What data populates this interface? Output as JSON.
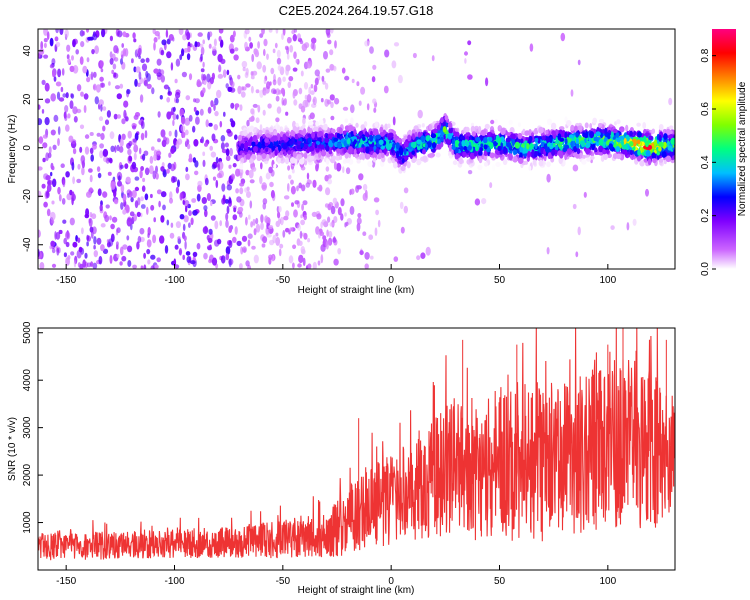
{
  "title": "C2E5.2024.264.19.57.G18",
  "chart_data": [
    {
      "type": "heatmap",
      "xlabel": "Height of straight line (km)",
      "ylabel": "Frequency (Hz)",
      "xlim": [
        -163,
        131
      ],
      "ylim": [
        -50,
        49
      ],
      "xticks": [
        -150,
        -100,
        -50,
        0,
        50,
        100
      ],
      "yticks": [
        -40,
        -20,
        0,
        20,
        40
      ],
      "colorbar": {
        "label": "Normalized spectral amplitude",
        "range": [
          0.0,
          0.9
        ],
        "ticks": [
          0.0,
          0.2,
          0.4,
          0.6,
          0.8
        ],
        "colors": [
          "#ffffff",
          "#cc66ff",
          "#7f00ff",
          "#0000ff",
          "#00bfff",
          "#00ff80",
          "#80ff00",
          "#ffff00",
          "#ff8000",
          "#ff0000",
          "#ff0080"
        ]
      },
      "noise_region_x_max": -25,
      "signal_track": {
        "x": [
          -70,
          -60,
          -50,
          -40,
          -30,
          -20,
          -10,
          0,
          5,
          10,
          20,
          25,
          30,
          40,
          50,
          60,
          70,
          80,
          90,
          100,
          110,
          115,
          120,
          125,
          131
        ],
        "freq": [
          0,
          1,
          1,
          2,
          2,
          3,
          2,
          2,
          -3,
          1,
          3,
          8,
          1,
          1,
          2,
          0,
          1,
          2,
          3,
          3,
          2,
          1,
          0,
          1,
          1
        ],
        "peak_amplitude": [
          0.25,
          0.3,
          0.3,
          0.35,
          0.35,
          0.45,
          0.45,
          0.45,
          0.4,
          0.45,
          0.5,
          0.55,
          0.5,
          0.5,
          0.5,
          0.5,
          0.5,
          0.55,
          0.55,
          0.6,
          0.7,
          0.85,
          0.9,
          0.6,
          0.55
        ]
      }
    },
    {
      "type": "line",
      "xlabel": "Height of straight line (km)",
      "ylabel": "SNR (10 * v/v)",
      "xlim": [
        -163,
        131
      ],
      "ylim": [
        0,
        5100
      ],
      "xticks": [
        -150,
        -100,
        -50,
        0,
        50,
        100
      ],
      "yticks": [
        1000,
        2000,
        3000,
        4000,
        5000
      ],
      "color": "#ee3333",
      "envelope": {
        "x": [
          -163,
          -130,
          -100,
          -70,
          -50,
          -30,
          -20,
          -10,
          0,
          10,
          20,
          30,
          40,
          50,
          60,
          70,
          80,
          90,
          100,
          110,
          120,
          131
        ],
        "center": [
          500,
          520,
          550,
          600,
          650,
          750,
          1000,
          1400,
          1500,
          1700,
          2000,
          2200,
          2100,
          2300,
          2200,
          2300,
          2400,
          2500,
          2600,
          2700,
          2500,
          2400
        ],
        "spread": [
          300,
          300,
          300,
          350,
          400,
          500,
          700,
          900,
          1000,
          1100,
          1300,
          1500,
          1500,
          1600,
          1700,
          1700,
          1700,
          1700,
          1800,
          1800,
          1700,
          1300
        ]
      },
      "notable_peaks": [
        {
          "x": -15,
          "y": 3200
        },
        {
          "x": 33,
          "y": 4850
        },
        {
          "x": 58,
          "y": 4750
        },
        {
          "x": 100,
          "y": 4750
        },
        {
          "x": 107,
          "y": 5100
        },
        {
          "x": 127,
          "y": 4850
        }
      ]
    }
  ]
}
